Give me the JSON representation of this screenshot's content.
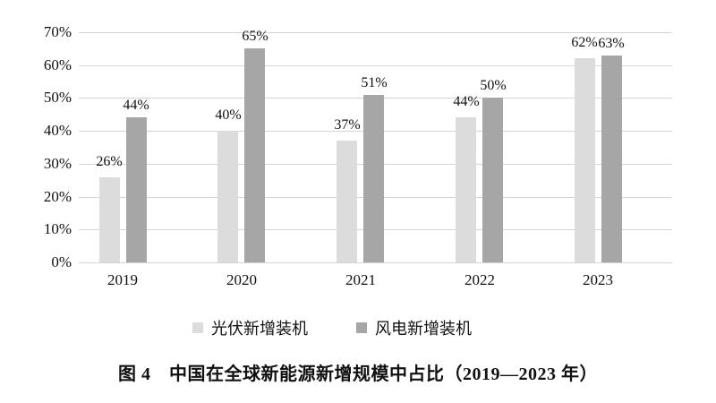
{
  "figure": {
    "caption": "图 4　中国在全球新能源新增规模中占比（2019—2023 年）"
  },
  "chart_data": {
    "type": "bar",
    "title": "图 4　中国在全球新能源新增规模中占比（2019—2023 年）",
    "categories": [
      "2019",
      "2020",
      "2021",
      "2022",
      "2023"
    ],
    "series": [
      {
        "key": "solar-pv",
        "name": "光伏新增装机",
        "color": "#dcdcdc",
        "values": [
          26,
          40,
          37,
          44,
          62
        ]
      },
      {
        "key": "wind",
        "name": "风电新增装机",
        "color": "#a6a6a6",
        "values": [
          44,
          65,
          51,
          50,
          63
        ]
      }
    ],
    "xlabel": "",
    "ylabel": "",
    "ylim": [
      0,
      70
    ],
    "ytick_step": 10,
    "ytick_suffix": "%",
    "grid": true,
    "gridline_color": "#d4d4d4",
    "text_color": "#111111",
    "legend_position": "bottom",
    "data_labels": true
  }
}
